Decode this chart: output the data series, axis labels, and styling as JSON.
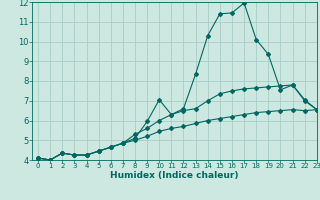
{
  "xlabel": "Humidex (Indice chaleur)",
  "bg_color": "#cce8e0",
  "grid_color": "#a8ccc8",
  "line_color": "#006860",
  "xlim": [
    -0.5,
    23
  ],
  "ylim": [
    4,
    12
  ],
  "xticks": [
    0,
    1,
    2,
    3,
    4,
    5,
    6,
    7,
    8,
    9,
    10,
    11,
    12,
    13,
    14,
    15,
    16,
    17,
    18,
    19,
    20,
    21,
    22,
    23
  ],
  "yticks": [
    4,
    5,
    6,
    7,
    8,
    9,
    10,
    11,
    12
  ],
  "lines": [
    {
      "x": [
        0,
        1,
        2,
        3,
        4,
        5,
        6,
        7,
        8,
        9,
        10,
        11,
        12,
        13,
        14,
        15,
        16,
        17,
        18,
        19,
        20,
        21,
        22,
        23
      ],
      "y": [
        4.1,
        4.0,
        4.35,
        4.25,
        4.25,
        4.45,
        4.65,
        4.85,
        5.1,
        5.95,
        7.05,
        6.3,
        6.6,
        8.35,
        10.3,
        11.4,
        11.45,
        11.95,
        10.1,
        9.35,
        7.55,
        7.8,
        7.05,
        6.55
      ]
    },
    {
      "x": [
        0,
        1,
        2,
        3,
        4,
        5,
        6,
        7,
        8,
        9,
        10,
        11,
        12,
        13,
        14,
        15,
        16,
        17,
        18,
        19,
        20,
        21,
        22,
        23
      ],
      "y": [
        4.1,
        4.0,
        4.35,
        4.25,
        4.25,
        4.45,
        4.65,
        4.85,
        5.3,
        5.6,
        6.0,
        6.3,
        6.5,
        6.6,
        7.0,
        7.35,
        7.5,
        7.6,
        7.65,
        7.7,
        7.75,
        7.8,
        7.0,
        6.55
      ]
    },
    {
      "x": [
        0,
        1,
        2,
        3,
        4,
        5,
        6,
        7,
        8,
        9,
        10,
        11,
        12,
        13,
        14,
        15,
        16,
        17,
        18,
        19,
        20,
        21,
        22,
        23
      ],
      "y": [
        4.1,
        4.0,
        4.35,
        4.25,
        4.25,
        4.45,
        4.65,
        4.85,
        5.0,
        5.2,
        5.45,
        5.6,
        5.7,
        5.85,
        6.0,
        6.1,
        6.2,
        6.3,
        6.4,
        6.45,
        6.5,
        6.55,
        6.5,
        6.55
      ]
    }
  ]
}
